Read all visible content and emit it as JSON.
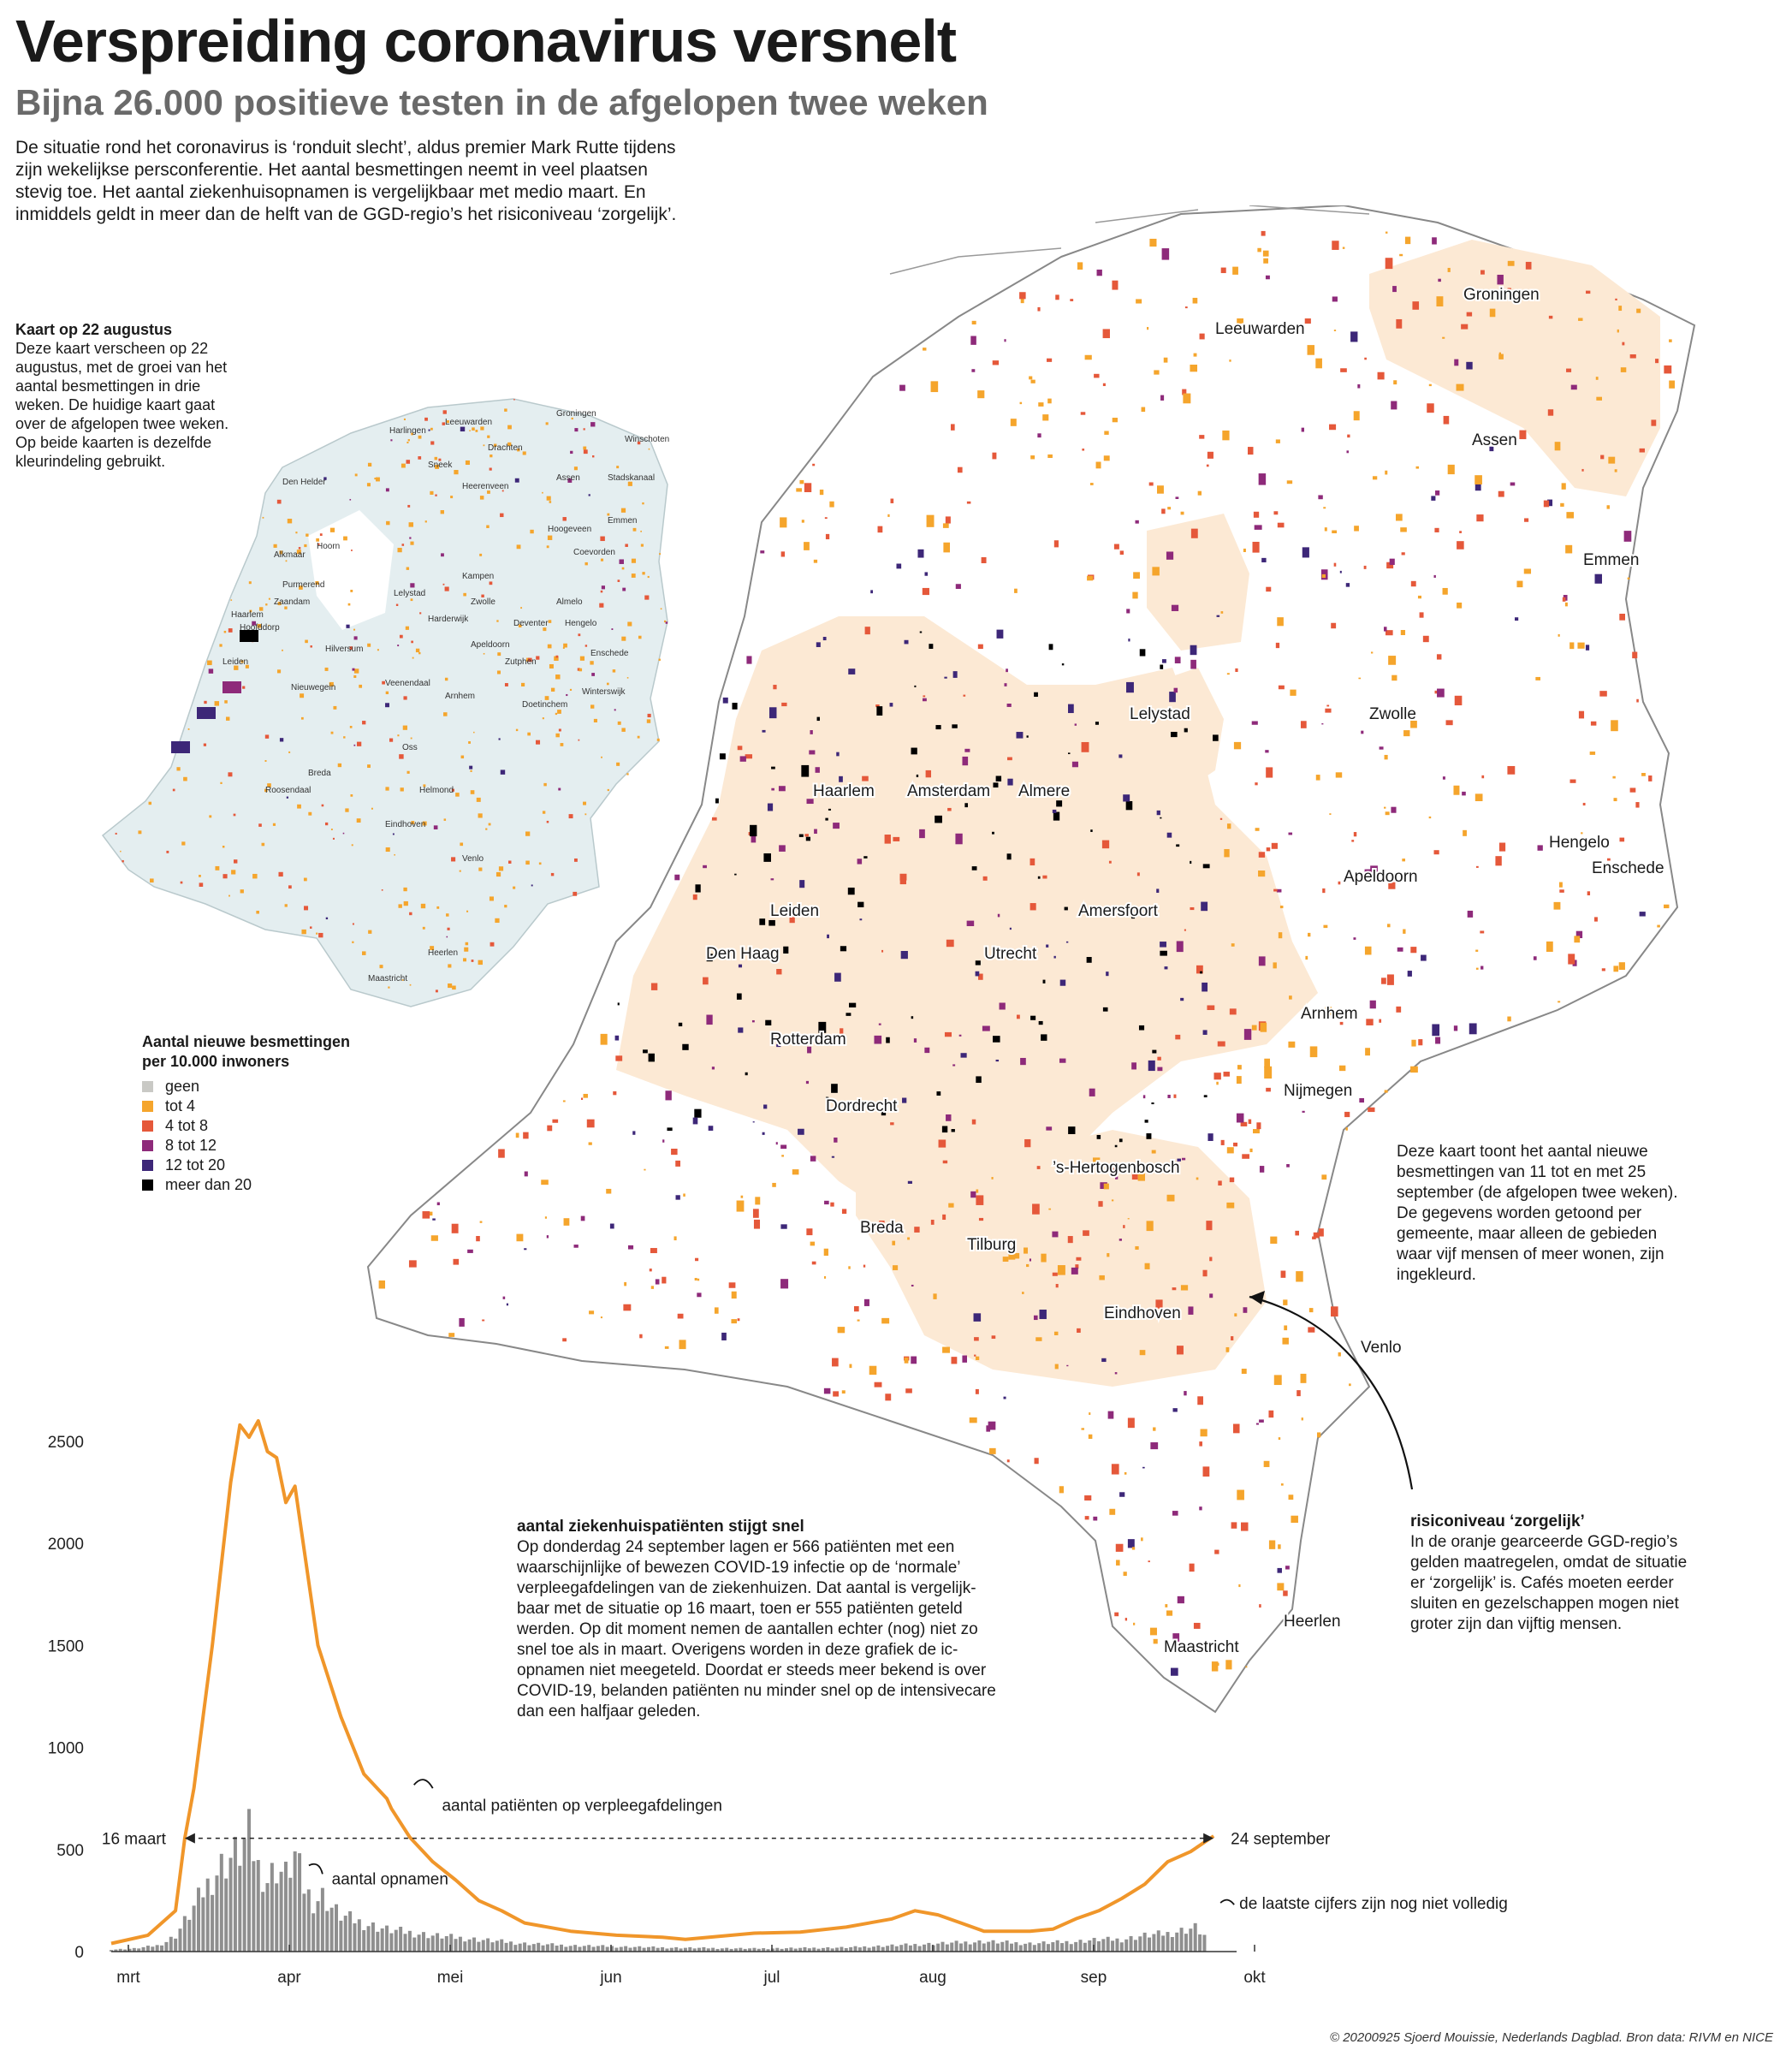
{
  "title": "Verspreiding coronavirus versnelt",
  "subtitle": "Bijna 26.000 positieve testen in de afgelopen twee weken",
  "intro": "De situatie rond het coronavirus is ‘ronduit slecht’, aldus premier Mark Rutte tijdens zijn wekelijkse persconferentie. Het aantal besmettingen neemt in veel plaatsen stevig toe. Het aantal ziekenhuisopnamen is vergelijkbaar met medio maart. En inmiddels geldt in meer dan de helft van de GGD-regio’s het risiconiveau ‘zorgelijk’.",
  "inset_note": {
    "heading": "Kaart op 22 augustus",
    "text": "Deze kaart verscheen op 22 augustus, met de groei van het aantal besmettingen in drie weken. De huidige kaart gaat over de afgelopen twee weken. Op beide kaarten is dezelfde kleurindeling gebruikt."
  },
  "legend": {
    "title": "Aantal nieuwe besmettingen per 10.000 inwoners",
    "items": [
      {
        "label": "geen",
        "color": "#c9c9c5"
      },
      {
        "label": "tot 4",
        "color": "#f5a52c"
      },
      {
        "label": "4 tot 8",
        "color": "#e5583a"
      },
      {
        "label": "8 tot 12",
        "color": "#8e2a7a"
      },
      {
        "label": "12 tot 20",
        "color": "#3d2778"
      },
      {
        "label": "meer dan 20",
        "color": "#000000"
      }
    ]
  },
  "colors": {
    "zorgelijk_region": "#fce9d4",
    "inset_land": "#e4eef0",
    "line": "#f0962a",
    "bars": "#8f8f8f"
  },
  "main_map_cities": [
    "Groningen",
    "Leeuwarden",
    "Assen",
    "Emmen",
    "Lelystad",
    "Zwolle",
    "Haarlem",
    "Amsterdam",
    "Almere",
    "Hengelo",
    "Enschede",
    "Apeldoorn",
    "Leiden",
    "Amersfoort",
    "Den Haag",
    "Utrecht",
    "Arnhem",
    "Rotterdam",
    "Nijmegen",
    "Dordrecht",
    "’s-Hertogenbosch",
    "Breda",
    "Tilburg",
    "Eindhoven",
    "Venlo",
    "Heerlen",
    "Maastricht"
  ],
  "inset_map_cities": [
    "Harlingen",
    "Leeuwarden",
    "Groningen",
    "Winschoten",
    "Sneek",
    "Drachten",
    "Assen",
    "Stadskanaal",
    "Den Helder",
    "Heerenveen",
    "Emmen",
    "Hoogeveen",
    "Coevorden",
    "Alkmaar",
    "Hoorn",
    "Kampen",
    "Purmerend",
    "Lelystad",
    "Zwolle",
    "Almelo",
    "Zaandam",
    "Harderwijk",
    "Hoofddorp",
    "Deventer",
    "Hengelo",
    "Haarlem",
    "Hilversum",
    "Apeldoorn",
    "Enschede",
    "Leiden",
    "Zutphen",
    "Nieuwegein",
    "Veenendaal",
    "Arnhem",
    "Doetinchem",
    "Winterswijk",
    "Oss",
    "Breda",
    "Helmond",
    "Roosendaal",
    "Eindhoven",
    "Venlo",
    "Heerlen",
    "Maastricht"
  ],
  "map_note": "Deze kaart toont het aantal nieuwe besmettingen van 11 tot en met 25 september (de afgelopen twee weken). De gegevens worden getoond per gemeente, maar alleen de gebieden waar vijf mensen of meer wonen, zijn ingekleurd.",
  "risk_note": {
    "heading": "risiconiveau ‘zorgelijk’",
    "text": "In de oranje gearceerde GGD-regio’s gelden maatregelen, omdat de situatie er ‘zorgelijk’ is. Cafés moeten eerder sluiten en gezelschappen mogen niet groter zijn dan vijftig mensen."
  },
  "hosp_note": {
    "heading": "aantal ziekenhuispatiënten stijgt snel",
    "text": "Op donderdag 24 september lagen er 566 patiënten met een waarschijnlijke of bewezen COVID-19 infectie op de ‘normale’ verpleegafdelingen van de ziekenhuizen. Dat aantal is vergelijk-baar met de situatie op 16 maart, toen er 555 patiënten geteld werden. Op dit moment nemen de aantallen echter (nog) niet zo snel toe als in maart. Overigens worden in deze grafiek de ic-opnamen niet meegeteld. Doordat er steeds meer bekend is over COVID-19, belanden patiënten nu minder snel op de intensivecare dan een halfjaar geleden."
  },
  "chart_data": {
    "type": "line",
    "title": "aantal patiënten op verpleegafdelingen",
    "xlabel": "",
    "ylabel": "",
    "x_ticks": [
      "mrt",
      "apr",
      "mei",
      "jun",
      "jul",
      "aug",
      "sep",
      "okt"
    ],
    "y_ticks": [
      "0",
      "500",
      "1000",
      "1500",
      "2000",
      "2500"
    ],
    "ylim": [
      0,
      2600
    ],
    "series": [
      {
        "name": "aantal patiënten op verpleegafdelingen",
        "kind": "line",
        "x": [
          0,
          8,
          14,
          16,
          18,
          20,
          22,
          24,
          26,
          28,
          30,
          32,
          34,
          36,
          38,
          40,
          45,
          50,
          55,
          60,
          61,
          65,
          70,
          75,
          80,
          85,
          90,
          100,
          110,
          120,
          125,
          140,
          150,
          160,
          170,
          175,
          180,
          185,
          190,
          200,
          205,
          210,
          215,
          220,
          225,
          230,
          235,
          240
        ],
        "values": [
          40,
          80,
          200,
          555,
          800,
          1150,
          1500,
          1900,
          2300,
          2580,
          2520,
          2600,
          2450,
          2420,
          2200,
          2280,
          1500,
          1150,
          870,
          750,
          700,
          560,
          440,
          350,
          250,
          200,
          140,
          100,
          80,
          70,
          60,
          90,
          95,
          120,
          160,
          200,
          180,
          140,
          100,
          100,
          110,
          160,
          200,
          260,
          330,
          440,
          490,
          566
        ]
      },
      {
        "name": "aantal opnamen",
        "kind": "bar",
        "x": [
          0,
          5,
          10,
          12,
          14,
          16,
          18,
          20,
          22,
          24,
          26,
          28,
          30,
          32,
          34,
          36,
          38,
          40,
          42,
          44,
          46,
          48,
          50,
          55,
          60,
          70,
          80,
          90,
          100,
          120,
          140,
          160,
          170,
          180,
          190,
          200,
          210,
          215,
          220,
          225,
          230,
          232,
          234,
          236,
          238
        ],
        "values": [
          10,
          15,
          30,
          50,
          80,
          150,
          220,
          300,
          370,
          430,
          470,
          500,
          580,
          420,
          360,
          420,
          380,
          480,
          320,
          250,
          280,
          220,
          180,
          140,
          110,
          80,
          60,
          40,
          30,
          20,
          15,
          20,
          30,
          40,
          50,
          40,
          50,
          60,
          60,
          80,
          90,
          100,
          110,
          120,
          80
        ]
      }
    ],
    "annotations": [
      "16 maart",
      "24 september",
      "aantal opnamen",
      "aantal patiënten op verpleegafdelingen",
      "de laatste cijfers zijn nog niet volledig"
    ]
  },
  "footer": "© 20200925 Sjoerd Mouissie, Nederlands Dagblad. Bron data: RIVM en NICE"
}
